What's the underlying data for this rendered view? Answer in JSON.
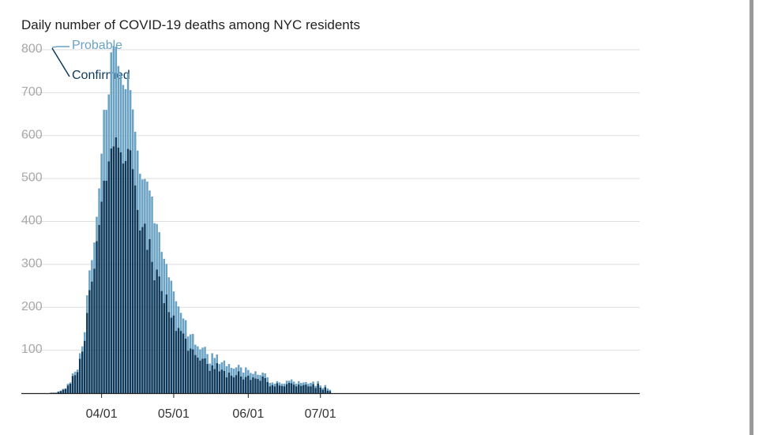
{
  "chart_data": {
    "type": "bar",
    "stacked": true,
    "title": "Daily number of COVID-19 deaths among NYC residents",
    "xlabel": "",
    "ylabel": "",
    "ylim": [
      0,
      800
    ],
    "yticks": [
      "800",
      "700",
      "600",
      "500",
      "400",
      "300",
      "200",
      "100"
    ],
    "xtick_labels": [
      "04/01",
      "05/01",
      "06/01",
      "07/01"
    ],
    "grid": true,
    "legend_placement": "top-left",
    "start_date": "03/11",
    "series": [
      {
        "name": "Confirmed",
        "color": "#0d3a5c",
        "values": [
          1,
          1,
          1,
          3,
          5,
          8,
          10,
          18,
          22,
          40,
          42,
          49,
          80,
          97,
          122,
          187,
          240,
          260,
          290,
          354,
          392,
          446,
          495,
          495,
          540,
          570,
          575,
          596,
          572,
          561,
          535,
          541,
          569,
          566,
          522,
          484,
          427,
          379,
          387,
          395,
          334,
          359,
          306,
          263,
          288,
          272,
          238,
          210,
          230,
          189,
          176,
          181,
          145,
          152,
          145,
          139,
          127,
          99,
          104,
          102,
          89,
          83,
          76,
          80,
          81,
          68,
          52,
          65,
          56,
          70,
          51,
          55,
          52,
          37,
          48,
          41,
          37,
          42,
          51,
          39,
          32,
          38,
          41,
          31,
          37,
          34,
          33,
          29,
          39,
          35,
          26,
          16,
          19,
          16,
          23,
          18,
          17,
          16,
          21,
          24,
          23,
          20,
          16,
          20,
          17,
          19,
          20,
          16,
          16,
          21,
          12,
          22,
          13,
          8,
          14,
          6,
          5
        ]
      },
      {
        "name": "Probable",
        "color": "#6aa2c4",
        "values": [
          0,
          0,
          0,
          1,
          1,
          2,
          1,
          4,
          3,
          6,
          8,
          6,
          13,
          12,
          20,
          41,
          46,
          50,
          61,
          57,
          85,
          112,
          165,
          165,
          156,
          224,
          234,
          211,
          190,
          183,
          183,
          167,
          176,
          140,
          139,
          125,
          138,
          132,
          111,
          104,
          159,
          113,
          152,
          133,
          106,
          103,
          91,
          103,
          71,
          81,
          86,
          56,
          69,
          50,
          42,
          35,
          43,
          33,
          33,
          36,
          24,
          26,
          26,
          26,
          27,
          23,
          17,
          28,
          26,
          20,
          17,
          17,
          24,
          26,
          20,
          18,
          20,
          18,
          15,
          21,
          16,
          22,
          13,
          16,
          8,
          17,
          10,
          13,
          9,
          11,
          11,
          8,
          6,
          6,
          5,
          7,
          5,
          6,
          8,
          5,
          9,
          7,
          6,
          8,
          7,
          6,
          6,
          6,
          8,
          6,
          5,
          6,
          5,
          4,
          5,
          5,
          3
        ]
      }
    ]
  }
}
